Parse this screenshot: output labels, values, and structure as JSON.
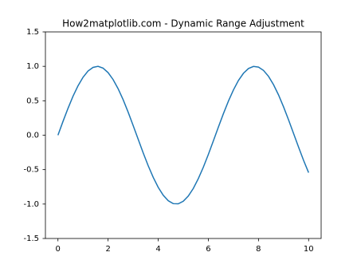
{
  "chart_data": {
    "type": "line",
    "title": "How2matplotlib.com - Dynamic Range Adjustment",
    "x": [
      0,
      0.2,
      0.4,
      0.6,
      0.8,
      1,
      1.2,
      1.4,
      1.6,
      1.8,
      2,
      2.2,
      2.4,
      2.6,
      2.8,
      3,
      3.2,
      3.4,
      3.6,
      3.8,
      4,
      4.2,
      4.4,
      4.6,
      4.8,
      5,
      5.2,
      5.4,
      5.6,
      5.8,
      6,
      6.2,
      6.4,
      6.6,
      6.8,
      7,
      7.2,
      7.4,
      7.6,
      7.8,
      8,
      8.2,
      8.4,
      8.6,
      8.8,
      9,
      9.2,
      9.4,
      9.6,
      9.8,
      10
    ],
    "series": [
      {
        "color": "#1f77b4",
        "values": [
          0,
          0.199,
          0.389,
          0.565,
          0.717,
          0.841,
          0.932,
          0.985,
          1,
          0.974,
          0.909,
          0.808,
          0.675,
          0.516,
          0.335,
          0.141,
          -0.058,
          -0.256,
          -0.443,
          -0.612,
          -0.757,
          -0.872,
          -0.952,
          -0.994,
          -0.996,
          -0.959,
          -0.883,
          -0.773,
          -0.631,
          -0.465,
          -0.279,
          -0.083,
          0.117,
          0.312,
          0.494,
          0.657,
          0.794,
          0.899,
          0.968,
          0.999,
          0.989,
          0.941,
          0.855,
          0.734,
          0.585,
          0.412,
          0.223,
          0.025,
          -0.174,
          -0.366,
          -0.544
        ]
      }
    ],
    "xlim": [
      -0.5,
      10.5
    ],
    "xticks": [
      0,
      2,
      4,
      6,
      8,
      10
    ],
    "ylim": [
      -1.5,
      1.5
    ],
    "yticks": [
      -1.5,
      {
        "value": -1,
        "label": "-1.0"
      },
      -0.5,
      {
        "value": 0,
        "label": "0.0"
      },
      0.5,
      {
        "value": 1,
        "label": "1.0"
      },
      1.5
    ],
    "grid": false
  }
}
